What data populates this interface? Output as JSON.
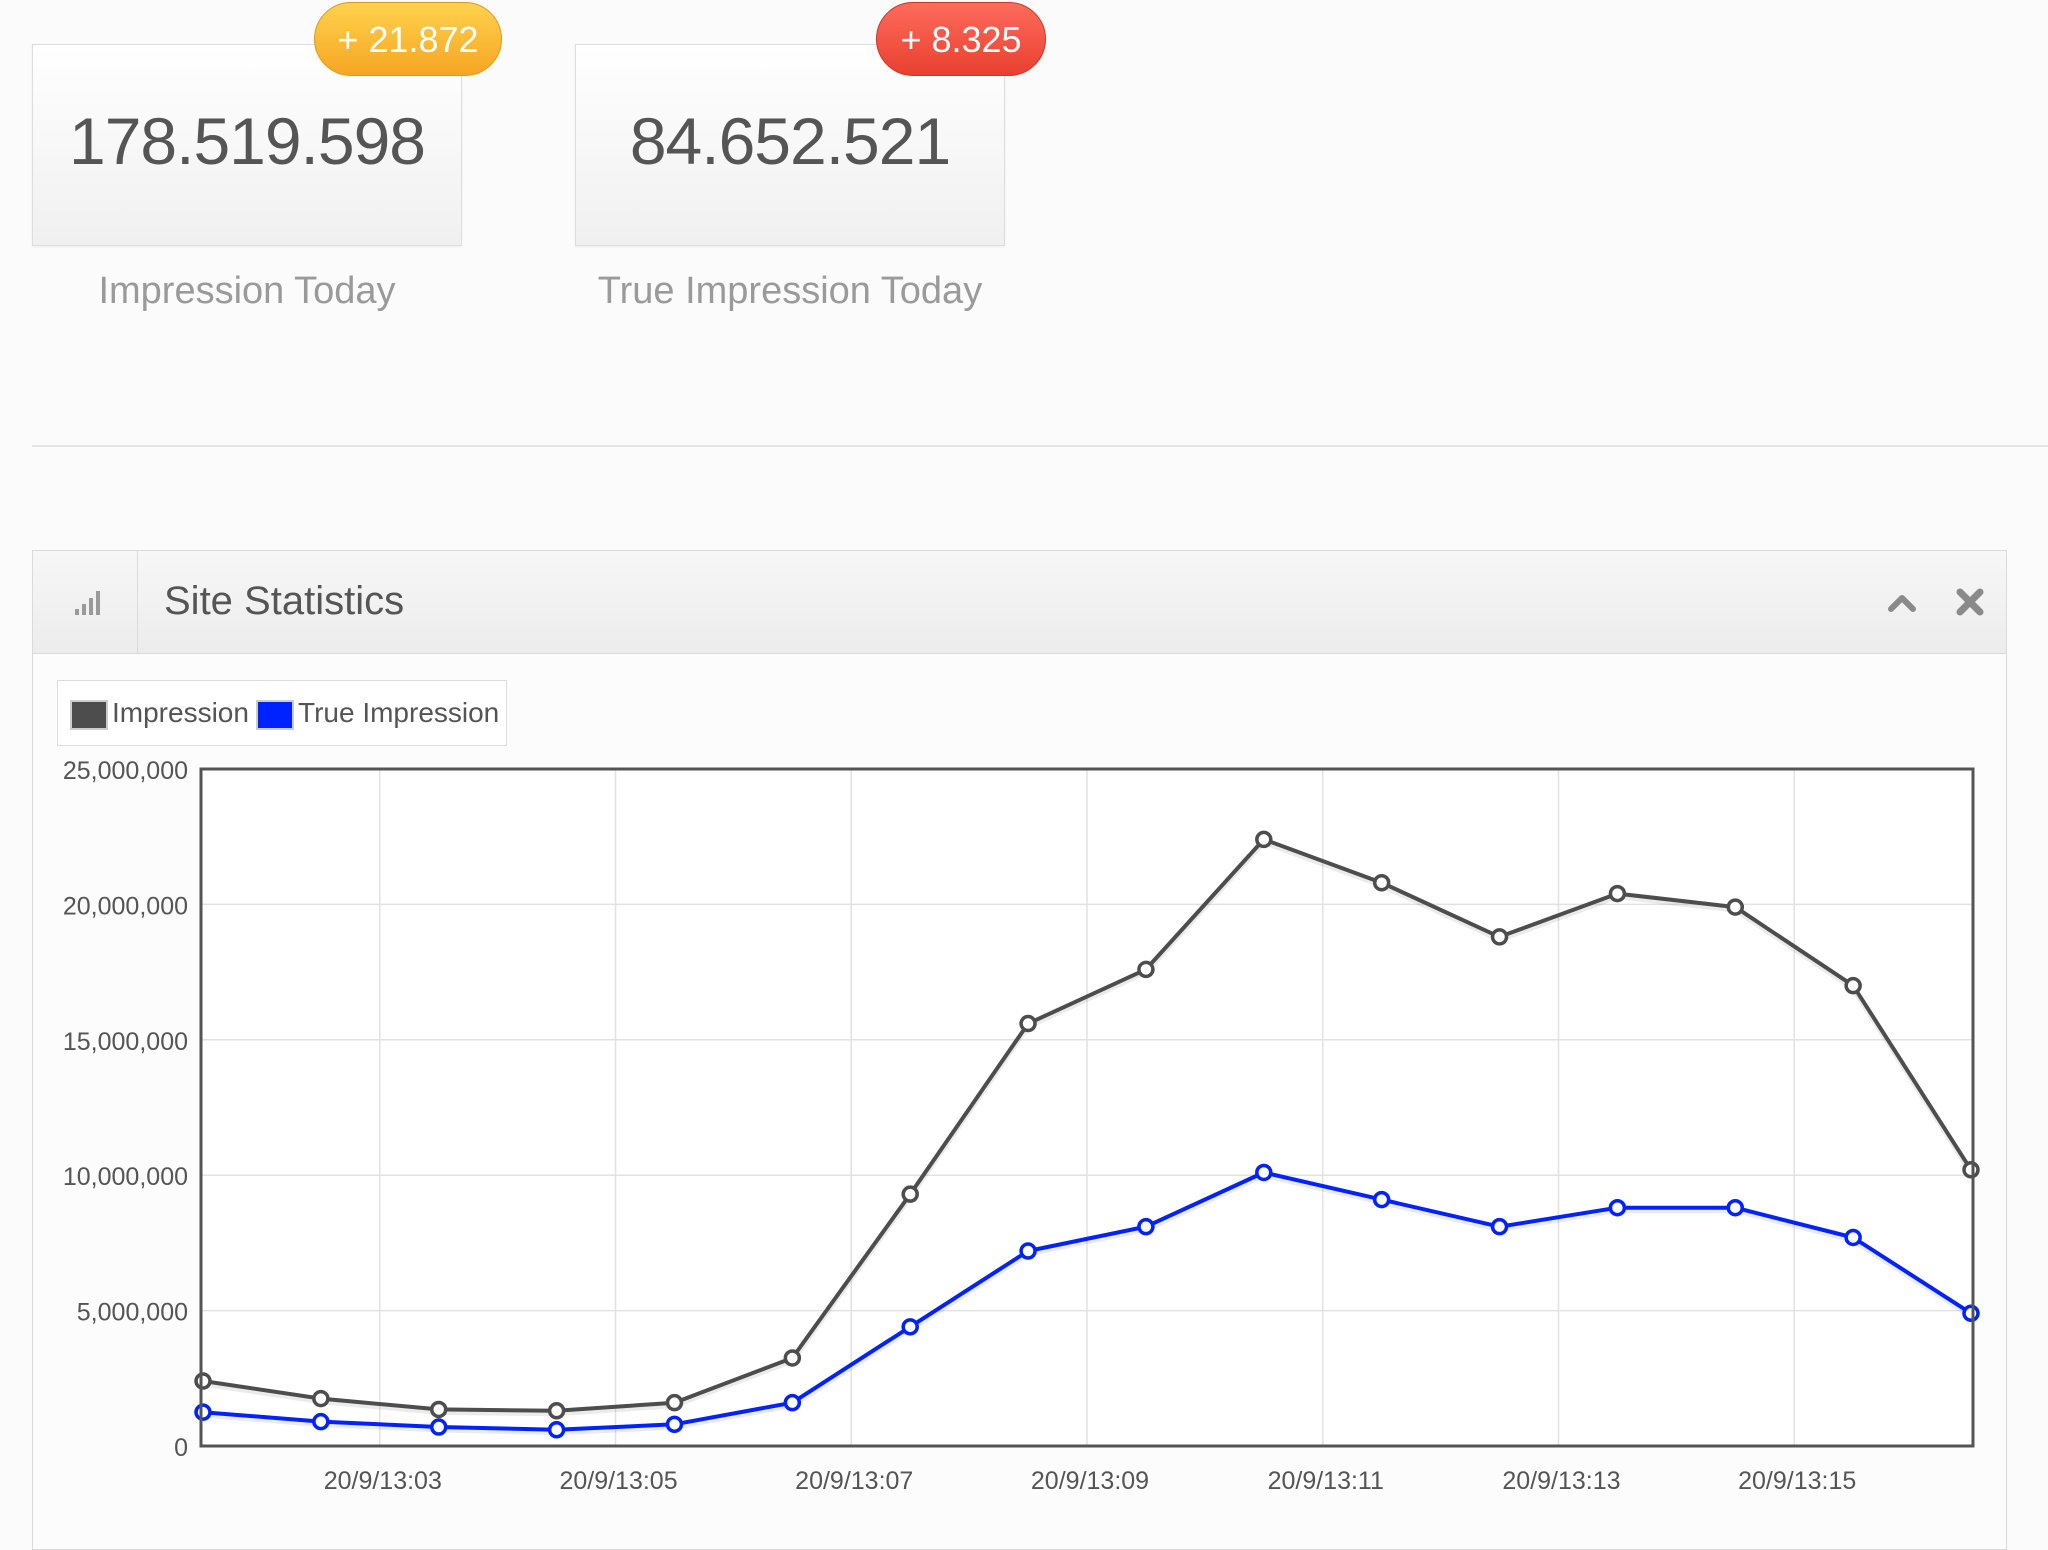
{
  "stats": [
    {
      "value": "178.519.598",
      "label": "Impression Today",
      "badge": "+ 21.872",
      "badge_color": "#f5a623"
    },
    {
      "value": "84.652.521",
      "label": "True Impression Today",
      "badge": "+ 8.325",
      "badge_color": "#e8402f"
    }
  ],
  "widget": {
    "title": "Site Statistics",
    "icon": "bar-chart-icon",
    "collapse_icon": "chevron-up-icon",
    "close_icon": "close-icon"
  },
  "legend": {
    "items": [
      {
        "label": "Impression",
        "color": "#4d4d4d"
      },
      {
        "label": "True Impression",
        "color": "#0022ff"
      }
    ]
  },
  "chart_data": {
    "type": "line",
    "x": [
      "20/9/13:02",
      "20/9/13:02:30",
      "20/9/13:03:30",
      "20/9/13:04:30",
      "20/9/13:05:30",
      "20/9/13:06:30",
      "20/9/13:07:30",
      "20/9/13:08:30",
      "20/9/13:09:30",
      "20/9/13:10:30",
      "20/9/13:11:30",
      "20/9/13:12:30",
      "20/9/13:13:30",
      "20/9/13:14:30",
      "20/9/13:15:30",
      "20/9/13:16"
    ],
    "x_ticks": [
      "20/9/13:03",
      "20/9/13:05",
      "20/9/13:07",
      "20/9/13:09",
      "20/9/13:11",
      "20/9/13:13",
      "20/9/13:15"
    ],
    "y_ticks": [
      "0",
      "5,000,000",
      "10,000,000",
      "15,000,000",
      "20,000,000",
      "25,000,000"
    ],
    "ylim": [
      0,
      25000000
    ],
    "grid": true,
    "legend_position": "top-left",
    "series": [
      {
        "name": "Impression",
        "color": "#4d4d4d",
        "values": [
          2400000,
          1750000,
          1350000,
          1300000,
          1600000,
          3250000,
          9300000,
          15600000,
          17600000,
          22400000,
          20800000,
          18800000,
          20400000,
          19900000,
          17000000,
          10200000
        ]
      },
      {
        "name": "True Impression",
        "color": "#0022ff",
        "values": [
          1250000,
          900000,
          700000,
          600000,
          800000,
          1600000,
          4400000,
          7200000,
          8100000,
          10100000,
          9100000,
          8100000,
          8800000,
          8800000,
          7700000,
          4900000
        ]
      }
    ]
  }
}
